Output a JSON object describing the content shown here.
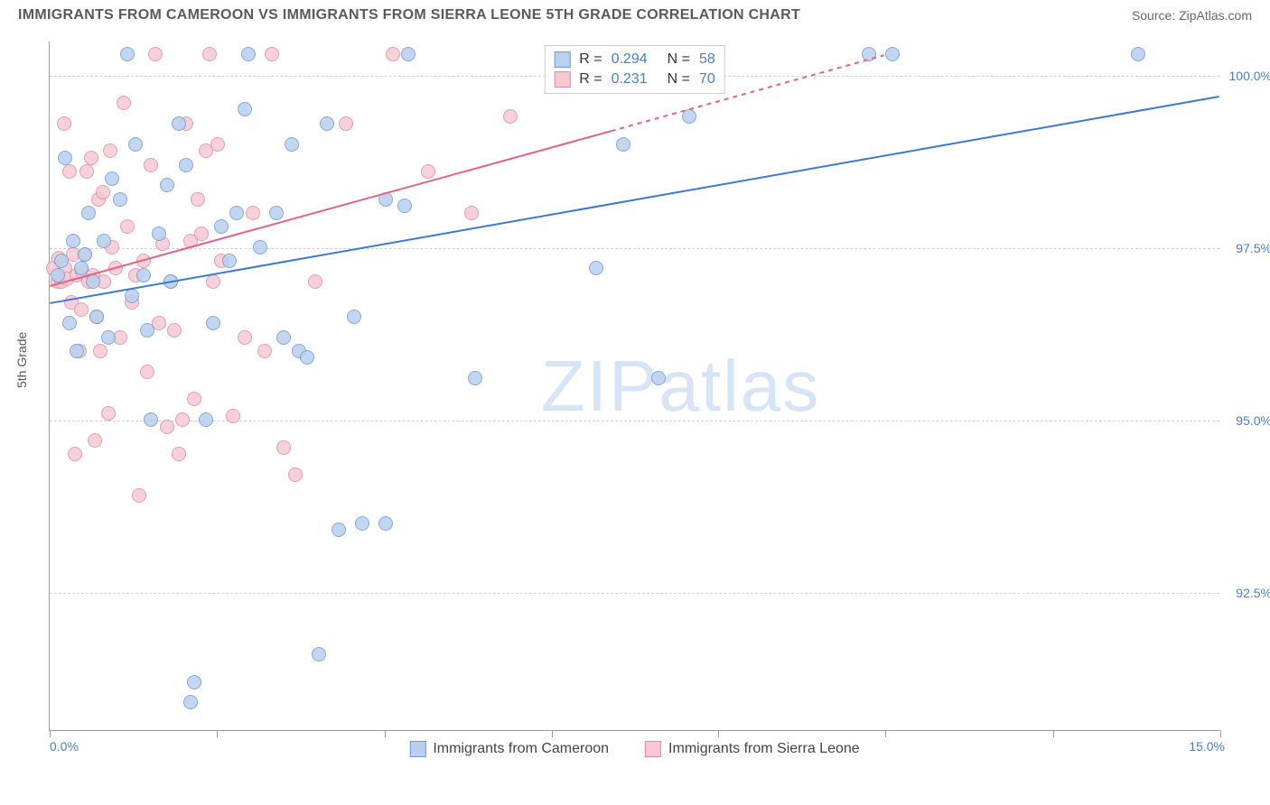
{
  "title": "IMMIGRANTS FROM CAMEROON VS IMMIGRANTS FROM SIERRA LEONE 5TH GRADE CORRELATION CHART",
  "source_label": "Source: ",
  "source_name": "ZipAtlas.com",
  "watermark_a": "ZIP",
  "watermark_b": "atlas",
  "ylabel": "5th Grade",
  "chart": {
    "type": "scatter",
    "xlim": [
      0,
      15
    ],
    "ylim": [
      90.5,
      100.5
    ],
    "x_tick_positions": [
      0,
      2.14,
      4.29,
      6.43,
      8.57,
      10.71,
      12.86,
      15
    ],
    "x_axis_labels": {
      "min": "0.0%",
      "max": "15.0%"
    },
    "y_gridlines": [
      92.5,
      95.0,
      97.5,
      100.0
    ],
    "y_labels": [
      "92.5%",
      "95.0%",
      "97.5%",
      "100.0%"
    ],
    "background_color": "#ffffff",
    "grid_color": "#d0d0d0",
    "axis_text_color": "#4a7ec9",
    "series": [
      {
        "name": "Immigrants from Cameroon",
        "fill": "#b9d0ef",
        "stroke": "#6a9bd8",
        "line_color": "#3b78d6",
        "r_value": "0.294",
        "n_value": "58",
        "trend": {
          "x1": 0,
          "y1": 96.7,
          "x2": 15,
          "y2": 99.7,
          "dash_from_x": 15
        },
        "points": [
          [
            0.1,
            97.1
          ],
          [
            0.15,
            97.3
          ],
          [
            0.2,
            98.8
          ],
          [
            0.25,
            96.4
          ],
          [
            0.3,
            97.6
          ],
          [
            0.35,
            96.0
          ],
          [
            0.4,
            97.2
          ],
          [
            0.45,
            97.4
          ],
          [
            0.5,
            98.0
          ],
          [
            0.55,
            97.0
          ],
          [
            0.6,
            96.5
          ],
          [
            0.7,
            97.6
          ],
          [
            0.75,
            96.2
          ],
          [
            0.8,
            98.5
          ],
          [
            0.9,
            98.2
          ],
          [
            1.0,
            100.3
          ],
          [
            1.05,
            96.8
          ],
          [
            1.1,
            99.0
          ],
          [
            1.2,
            97.1
          ],
          [
            1.25,
            96.3
          ],
          [
            1.3,
            95.0
          ],
          [
            1.4,
            97.7
          ],
          [
            1.5,
            98.4
          ],
          [
            1.55,
            97.0
          ],
          [
            1.65,
            99.3
          ],
          [
            1.75,
            98.7
          ],
          [
            1.8,
            90.9
          ],
          [
            1.85,
            91.2
          ],
          [
            2.0,
            95.0
          ],
          [
            2.1,
            96.4
          ],
          [
            2.2,
            97.8
          ],
          [
            2.3,
            97.3
          ],
          [
            2.4,
            98.0
          ],
          [
            2.5,
            99.5
          ],
          [
            2.55,
            100.3
          ],
          [
            2.7,
            97.5
          ],
          [
            2.9,
            98.0
          ],
          [
            3.0,
            96.2
          ],
          [
            3.1,
            99.0
          ],
          [
            3.2,
            96.0
          ],
          [
            3.3,
            95.9
          ],
          [
            3.45,
            91.6
          ],
          [
            3.55,
            99.3
          ],
          [
            3.7,
            93.4
          ],
          [
            3.9,
            96.5
          ],
          [
            4.0,
            93.5
          ],
          [
            4.3,
            98.2
          ],
          [
            4.3,
            93.5
          ],
          [
            4.55,
            98.1
          ],
          [
            4.6,
            100.3
          ],
          [
            5.45,
            95.6
          ],
          [
            7.0,
            97.2
          ],
          [
            7.35,
            99.0
          ],
          [
            7.8,
            95.6
          ],
          [
            8.2,
            99.4
          ],
          [
            10.5,
            100.3
          ],
          [
            10.8,
            100.3
          ],
          [
            13.95,
            100.3
          ]
        ]
      },
      {
        "name": "Immigrants from Sierra Leone",
        "fill": "#f5c9d3",
        "stroke": "#e68aa2",
        "line_color": "#e56284",
        "r_value": "0.231",
        "n_value": "70",
        "trend": {
          "x1": 0,
          "y1": 96.95,
          "x2": 7.2,
          "y2": 99.2,
          "dash_to_x": 10.7,
          "dash_to_y": 100.3
        },
        "points": [
          [
            0.05,
            97.2
          ],
          [
            0.1,
            97.0
          ],
          [
            0.12,
            97.35
          ],
          [
            0.15,
            97.0
          ],
          [
            0.18,
            99.3
          ],
          [
            0.2,
            97.2
          ],
          [
            0.22,
            97.05
          ],
          [
            0.25,
            98.6
          ],
          [
            0.28,
            96.7
          ],
          [
            0.3,
            97.4
          ],
          [
            0.32,
            94.5
          ],
          [
            0.35,
            97.1
          ],
          [
            0.38,
            96.0
          ],
          [
            0.4,
            96.6
          ],
          [
            0.42,
            97.15
          ],
          [
            0.45,
            97.4
          ],
          [
            0.48,
            98.6
          ],
          [
            0.5,
            97.0
          ],
          [
            0.53,
            98.8
          ],
          [
            0.55,
            97.1
          ],
          [
            0.58,
            94.7
          ],
          [
            0.6,
            96.5
          ],
          [
            0.62,
            98.2
          ],
          [
            0.65,
            96.0
          ],
          [
            0.68,
            98.3
          ],
          [
            0.7,
            97.0
          ],
          [
            0.75,
            95.1
          ],
          [
            0.78,
            98.9
          ],
          [
            0.8,
            97.5
          ],
          [
            0.85,
            97.2
          ],
          [
            0.9,
            96.2
          ],
          [
            0.95,
            99.6
          ],
          [
            1.0,
            97.8
          ],
          [
            1.05,
            96.7
          ],
          [
            1.1,
            97.1
          ],
          [
            1.15,
            93.9
          ],
          [
            1.2,
            97.3
          ],
          [
            1.25,
            95.7
          ],
          [
            1.3,
            98.7
          ],
          [
            1.35,
            100.3
          ],
          [
            1.4,
            96.4
          ],
          [
            1.45,
            97.55
          ],
          [
            1.5,
            94.9
          ],
          [
            1.55,
            97.0
          ],
          [
            1.6,
            96.3
          ],
          [
            1.65,
            94.5
          ],
          [
            1.7,
            95.0
          ],
          [
            1.75,
            99.3
          ],
          [
            1.8,
            97.6
          ],
          [
            1.85,
            95.3
          ],
          [
            1.9,
            98.2
          ],
          [
            1.95,
            97.7
          ],
          [
            2.0,
            98.9
          ],
          [
            2.05,
            100.3
          ],
          [
            2.1,
            97.0
          ],
          [
            2.15,
            99.0
          ],
          [
            2.2,
            97.3
          ],
          [
            2.35,
            95.05
          ],
          [
            2.5,
            96.2
          ],
          [
            2.6,
            98.0
          ],
          [
            2.75,
            96.0
          ],
          [
            2.85,
            100.3
          ],
          [
            3.0,
            94.6
          ],
          [
            3.15,
            94.2
          ],
          [
            3.4,
            97.0
          ],
          [
            3.8,
            99.3
          ],
          [
            4.4,
            100.3
          ],
          [
            4.85,
            98.6
          ],
          [
            5.4,
            98.0
          ],
          [
            5.9,
            99.4
          ]
        ]
      }
    ]
  }
}
